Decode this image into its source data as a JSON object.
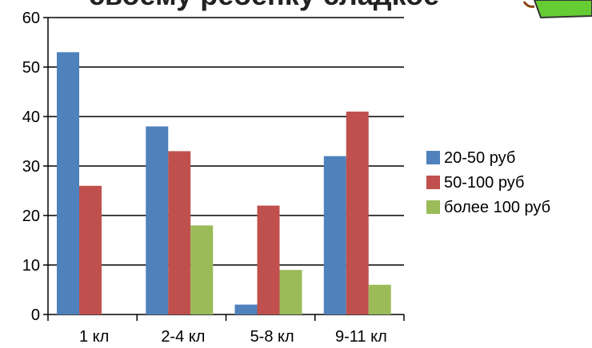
{
  "chart_data": {
    "type": "bar",
    "title": "своему ребенку сладкое",
    "categories": [
      "1 кл",
      "2-4 кл",
      "5-8 кл",
      "9-11 кл"
    ],
    "series": [
      {
        "name": "20-50 руб",
        "color": "#4f81bd",
        "values": [
          53,
          38,
          2,
          32
        ]
      },
      {
        "name": "50-100 руб",
        "color": "#c0504d",
        "values": [
          26,
          33,
          22,
          41
        ]
      },
      {
        "name": "более 100 руб",
        "color": "#9bbb59",
        "values": [
          0,
          18,
          9,
          6
        ]
      }
    ],
    "ylim": [
      0,
      60
    ],
    "yticks": [
      0,
      10,
      20,
      30,
      40,
      50,
      60
    ],
    "grid": true,
    "legend": "right"
  }
}
